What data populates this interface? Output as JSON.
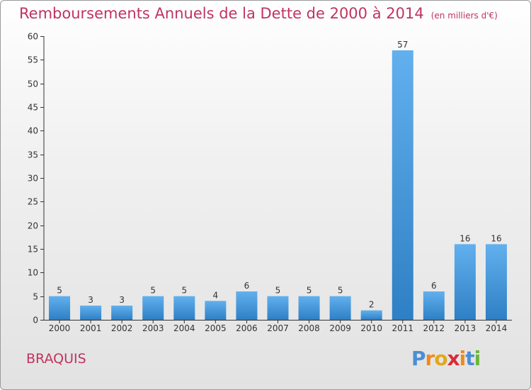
{
  "header": {
    "title": "Remboursements Annuels de la Dette de 2000 à 2014",
    "subtitle": "(en milliers d'€)"
  },
  "footer": {
    "commune": "BRAQUIS",
    "logo_letters": [
      "P",
      "r",
      "o",
      "x",
      "i",
      "t",
      "i"
    ],
    "logo_colors": [
      "#4a8fd6",
      "#f08a1c",
      "#e2a81c",
      "#d82b36",
      "#f08a1c",
      "#4a8fd6",
      "#6cb63b"
    ]
  },
  "colors": {
    "bar_light": "#62b0ee",
    "bar_dark": "#2e7fc4",
    "title": "#c0345f"
  },
  "chart_data": {
    "type": "bar",
    "categories": [
      "2000",
      "2001",
      "2002",
      "2003",
      "2004",
      "2005",
      "2006",
      "2007",
      "2008",
      "2009",
      "2010",
      "2011",
      "2012",
      "2013",
      "2014"
    ],
    "values": [
      5,
      3,
      3,
      5,
      5,
      4,
      6,
      5,
      5,
      5,
      2,
      57,
      6,
      16,
      16
    ],
    "ylim": [
      0,
      60
    ],
    "yticks": [
      0,
      5,
      10,
      15,
      20,
      25,
      30,
      35,
      40,
      45,
      50,
      55,
      60
    ],
    "grid": false,
    "legend": "none"
  }
}
